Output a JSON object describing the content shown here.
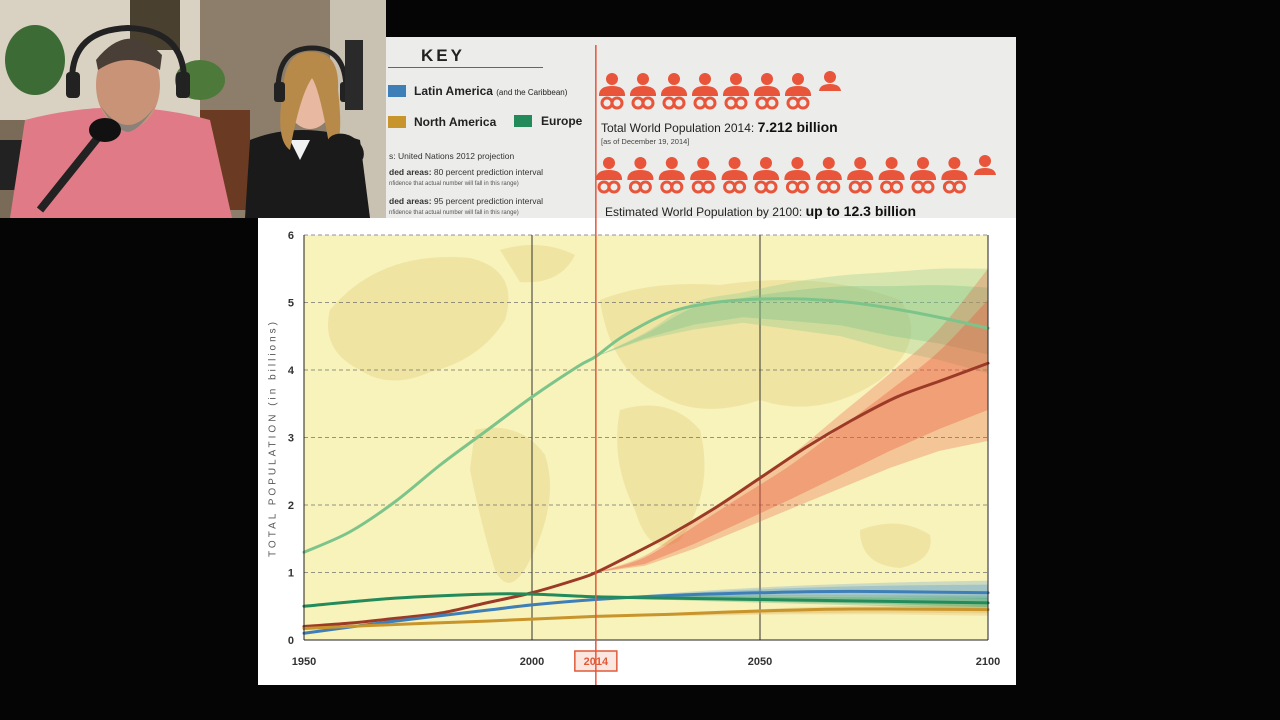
{
  "key": {
    "title": "KEY",
    "legend": [
      {
        "label": "Latin America",
        "suffix": "(and the Caribbean)",
        "color": "#3f7fb8"
      },
      {
        "label": "North America",
        "suffix": "",
        "color": "#c8942c"
      },
      {
        "label": "Europe",
        "suffix": "",
        "color": "#238a5a"
      }
    ],
    "source_line": "s: United Nations 2012 projection",
    "shaded80_head": "ded areas:",
    "shaded80_text": "80 percent prediction interval",
    "shaded80_sub": "nfidence that actual number will fall in this range)",
    "shaded95_head": "ded areas:",
    "shaded95_text": "95 percent prediction interval",
    "shaded95_sub": "nfidence that actual number will fall in this range)"
  },
  "infographic": {
    "world_2014_label": "Total World Population 2014:",
    "world_2014_value": "7.212 billion",
    "world_2014_asof": "[as of December 19, 2014]",
    "world_2100_label": "Estimated World Population by 2100:",
    "world_2100_value": "up to 12.3 billion",
    "icon_color": "#e8553a"
  },
  "chart_data": {
    "type": "line",
    "title": "",
    "xlabel": "",
    "ylabel": "TOTAL POPULATION (in billions)",
    "xlim": [
      1950,
      2100
    ],
    "ylim": [
      0,
      6
    ],
    "x_ticks": [
      1950,
      2000,
      2014,
      2050,
      2100
    ],
    "y_ticks": [
      0,
      1,
      2,
      3,
      4,
      5,
      6
    ],
    "highlight_year": 2014,
    "grid": "dashed horizontal",
    "series": [
      {
        "color": "#7cc48a",
        "x": [
          1950,
          1960,
          1970,
          1980,
          1990,
          2000,
          2010,
          2014,
          2020,
          2030,
          2040,
          2050,
          2060,
          2070,
          2080,
          2090,
          2100
        ],
        "y": [
          1.3,
          1.6,
          2.05,
          2.6,
          3.1,
          3.6,
          4.05,
          4.2,
          4.5,
          4.85,
          5.0,
          5.05,
          5.05,
          5.0,
          4.9,
          4.77,
          4.62
        ],
        "band_low": [
          4.2,
          4.45,
          4.6,
          4.7,
          4.6,
          4.5,
          4.3,
          4.15,
          3.95
        ],
        "band_high": [
          4.2,
          4.55,
          5.0,
          5.15,
          5.3,
          5.4,
          5.45,
          5.5,
          5.5
        ]
      },
      {
        "color": "#9c3a28",
        "x": [
          1950,
          1960,
          1970,
          1980,
          1990,
          2000,
          2010,
          2014,
          2020,
          2030,
          2040,
          2050,
          2060,
          2070,
          2080,
          2090,
          2100
        ],
        "y": [
          0.2,
          0.25,
          0.32,
          0.4,
          0.55,
          0.7,
          0.9,
          1.0,
          1.2,
          1.55,
          1.95,
          2.4,
          2.85,
          3.25,
          3.6,
          3.85,
          4.1
        ],
        "band_low": [
          1.0,
          1.1,
          1.35,
          1.65,
          1.95,
          2.25,
          2.55,
          2.8,
          2.95
        ],
        "band_high": [
          1.0,
          1.25,
          1.75,
          2.25,
          2.75,
          3.35,
          3.95,
          4.6,
          5.5
        ]
      },
      {
        "name": "Latin America",
        "color": "#3f7fb8",
        "x": [
          1950,
          1970,
          1990,
          2000,
          2014,
          2030,
          2050,
          2070,
          2100
        ],
        "y": [
          0.1,
          0.28,
          0.44,
          0.52,
          0.6,
          0.66,
          0.7,
          0.72,
          0.7
        ],
        "band_low": [
          0.6,
          0.62,
          0.62,
          0.6,
          0.55
        ],
        "band_high": [
          0.6,
          0.72,
          0.8,
          0.85,
          0.88
        ]
      },
      {
        "name": "North America",
        "color": "#c8942c",
        "x": [
          1950,
          1970,
          1990,
          2000,
          2014,
          2030,
          2050,
          2070,
          2100
        ],
        "y": [
          0.17,
          0.23,
          0.28,
          0.31,
          0.35,
          0.38,
          0.43,
          0.46,
          0.45
        ],
        "band_low": [
          0.35,
          0.36,
          0.38,
          0.38,
          0.36
        ],
        "band_high": [
          0.35,
          0.4,
          0.48,
          0.52,
          0.55
        ]
      },
      {
        "name": "Europe",
        "color": "#238a5a",
        "x": [
          1950,
          1970,
          1990,
          2000,
          2014,
          2030,
          2050,
          2070,
          2100
        ],
        "y": [
          0.5,
          0.62,
          0.68,
          0.68,
          0.64,
          0.62,
          0.6,
          0.58,
          0.55
        ],
        "band_low": [
          0.64,
          0.58,
          0.54,
          0.5,
          0.45
        ],
        "band_high": [
          0.64,
          0.66,
          0.66,
          0.66,
          0.66
        ]
      }
    ]
  }
}
